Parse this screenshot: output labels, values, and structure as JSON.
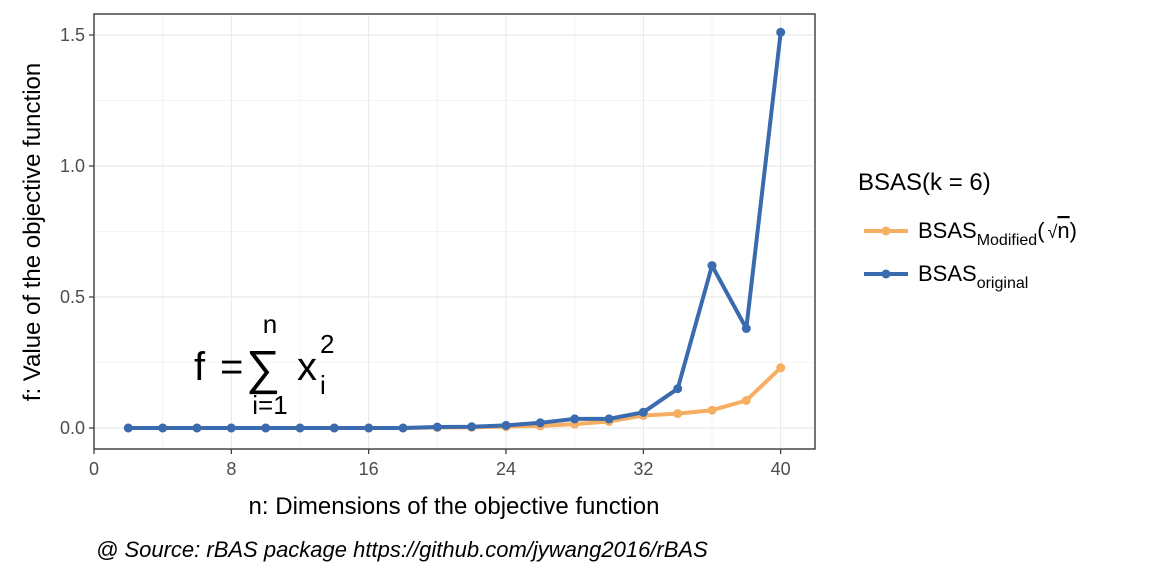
{
  "chart_data": {
    "type": "line",
    "x": [
      2,
      4,
      6,
      8,
      10,
      12,
      14,
      16,
      18,
      20,
      22,
      24,
      26,
      28,
      30,
      32,
      34,
      36,
      38,
      40
    ],
    "series": [
      {
        "name": "BSAS_Modified(√n)",
        "name_main": "BSAS",
        "name_sub": "Modified",
        "name_tail": "(",
        "name_sqrt": "√",
        "name_arg": "n",
        "name_close": ")",
        "color": "#F5AE62",
        "values": [
          0,
          0,
          0,
          0,
          0,
          0,
          0,
          0,
          0,
          0.002,
          0.003,
          0.005,
          0.008,
          0.015,
          0.025,
          0.048,
          0.055,
          0.068,
          0.105,
          0.23
        ]
      },
      {
        "name": "BSAS_original",
        "name_main": "BSAS",
        "name_sub": "original",
        "color": "#3A6BAF",
        "values": [
          0,
          0,
          0,
          0,
          0,
          0,
          0,
          0,
          0,
          0.004,
          0.005,
          0.01,
          0.02,
          0.035,
          0.035,
          0.06,
          0.15,
          0.62,
          0.38,
          1.51
        ]
      }
    ],
    "xlim": [
      0,
      42
    ],
    "ylim": [
      -0.08,
      1.58
    ],
    "x_ticks": [
      0,
      8,
      16,
      24,
      32,
      40
    ],
    "x_tick_labels": [
      "0",
      "8",
      "16",
      "24",
      "32",
      "40"
    ],
    "y_ticks": [
      0,
      0.5,
      1,
      1.5
    ],
    "y_tick_labels": [
      "0.0",
      "0.5",
      "1.0",
      "1.5"
    ],
    "xlabel": "n: Dimensions of the objective function",
    "ylabel": "f: Value of the objective function",
    "legend_title": "BSAS(k = 6)",
    "legend_position": "right",
    "grid": true
  },
  "annotation": {
    "f": "f",
    "eq": "=",
    "sigma": "∑",
    "upper": "n",
    "lower": "i=1",
    "var": "x",
    "sub": "i",
    "sup": "2"
  },
  "caption": "@ Source: rBAS package https://github.com/jywang2016/rBAS"
}
